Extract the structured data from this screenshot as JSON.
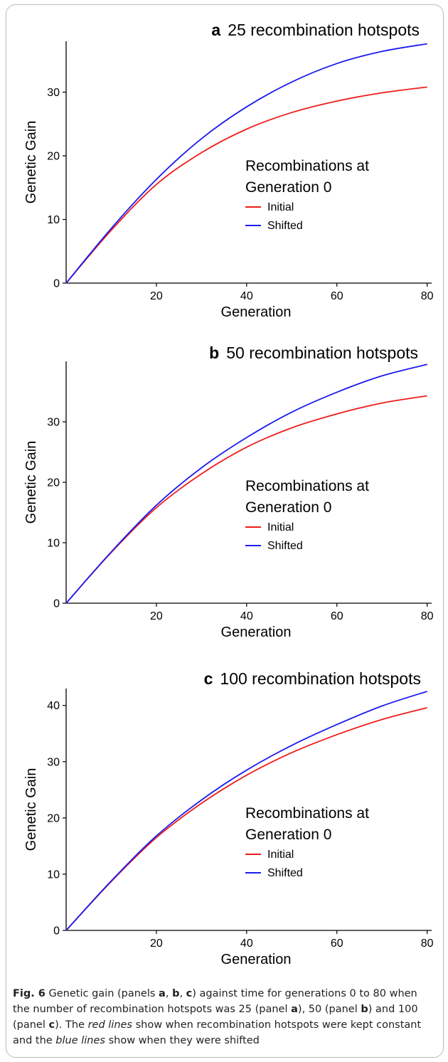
{
  "chart_data": [
    {
      "type": "line",
      "panel": "a",
      "title_letter": "a",
      "title": "25 recombination hotspots",
      "xlabel": "Generation",
      "ylabel": "Genetic Gain",
      "xlim": [
        0,
        81
      ],
      "ylim": [
        0,
        38
      ],
      "xticks": [
        20,
        40,
        60,
        80
      ],
      "yticks": [
        0,
        10,
        20,
        30
      ],
      "grid": false,
      "legend_title": "Recombinations at Generation 0",
      "legend_title_lines": [
        "Recombinations at",
        "Generation 0"
      ],
      "legend_position": "center-right",
      "series": [
        {
          "name": "Initial",
          "color": "#ee1c1c",
          "x": [
            0,
            10,
            20,
            30,
            40,
            50,
            60,
            70,
            80
          ],
          "y": [
            0,
            8.3,
            15.5,
            20.5,
            24.2,
            26.8,
            28.6,
            29.9,
            30.8
          ]
        },
        {
          "name": "Shifted",
          "color": "#1c1cee",
          "x": [
            0,
            10,
            20,
            30,
            40,
            50,
            60,
            70,
            80
          ],
          "y": [
            0,
            8.6,
            16.3,
            22.7,
            27.7,
            31.6,
            34.5,
            36.4,
            37.6
          ]
        }
      ]
    },
    {
      "type": "line",
      "panel": "b",
      "title_letter": "b",
      "title": "50 recombination hotspots",
      "xlabel": "Generation",
      "ylabel": "Genetic Gain",
      "xlim": [
        0,
        81
      ],
      "ylim": [
        0,
        40
      ],
      "xticks": [
        20,
        40,
        60,
        80
      ],
      "yticks": [
        0,
        10,
        20,
        30
      ],
      "grid": false,
      "legend_title": "Recombinations at Generation 0",
      "legend_title_lines": [
        "Recombinations at",
        "Generation 0"
      ],
      "legend_position": "center-right",
      "series": [
        {
          "name": "Initial",
          "color": "#ee1c1c",
          "x": [
            0,
            10,
            20,
            30,
            40,
            50,
            60,
            70,
            80
          ],
          "y": [
            0,
            8.4,
            15.8,
            21.4,
            25.8,
            29.0,
            31.3,
            33.1,
            34.3
          ]
        },
        {
          "name": "Shifted",
          "color": "#1c1cee",
          "x": [
            0,
            10,
            20,
            30,
            40,
            50,
            60,
            70,
            80
          ],
          "y": [
            0,
            8.5,
            16.2,
            22.4,
            27.4,
            31.6,
            34.9,
            37.6,
            39.5
          ]
        }
      ]
    },
    {
      "type": "line",
      "panel": "c",
      "title_letter": "c",
      "title": "100 recombination hotspots",
      "xlabel": "Generation",
      "ylabel": "Genetic Gain",
      "xlim": [
        0,
        81
      ],
      "ylim": [
        0,
        43
      ],
      "xticks": [
        20,
        40,
        60,
        80
      ],
      "yticks": [
        0,
        10,
        20,
        30,
        40
      ],
      "grid": false,
      "legend_title": "Recombinations at Generation 0",
      "legend_title_lines": [
        "Recombinations at",
        "Generation 0"
      ],
      "legend_position": "center-right",
      "series": [
        {
          "name": "Initial",
          "color": "#ee1c1c",
          "x": [
            0,
            10,
            20,
            30,
            40,
            50,
            60,
            70,
            80
          ],
          "y": [
            0,
            8.7,
            16.5,
            22.6,
            27.6,
            31.6,
            34.8,
            37.5,
            39.6
          ]
        },
        {
          "name": "Shifted",
          "color": "#1c1cee",
          "x": [
            0,
            10,
            20,
            30,
            40,
            50,
            60,
            70,
            80
          ],
          "y": [
            0,
            8.8,
            16.8,
            23.2,
            28.5,
            32.9,
            36.6,
            39.9,
            42.5
          ]
        }
      ]
    }
  ],
  "caption": {
    "label": "Fig. 6",
    "parts": [
      {
        "t": "  Genetic gain (panels ",
        "s": "n"
      },
      {
        "t": "a",
        "s": "b"
      },
      {
        "t": ", ",
        "s": "n"
      },
      {
        "t": "b",
        "s": "b"
      },
      {
        "t": ", ",
        "s": "n"
      },
      {
        "t": "c",
        "s": "b"
      },
      {
        "t": ") against time for generations 0 to 80 when the number of recombination hotspots was 25 (panel ",
        "s": "n"
      },
      {
        "t": "a",
        "s": "b"
      },
      {
        "t": "), 50 (panel ",
        "s": "n"
      },
      {
        "t": "b",
        "s": "b"
      },
      {
        "t": ") and 100 (panel ",
        "s": "n"
      },
      {
        "t": "c",
        "s": "b"
      },
      {
        "t": "). The ",
        "s": "n"
      },
      {
        "t": "red lines",
        "s": "i"
      },
      {
        "t": " show when recombination hotspots were kept constant and the ",
        "s": "n"
      },
      {
        "t": "blue lines",
        "s": "i"
      },
      {
        "t": " show when they were shifted",
        "s": "n"
      }
    ]
  }
}
